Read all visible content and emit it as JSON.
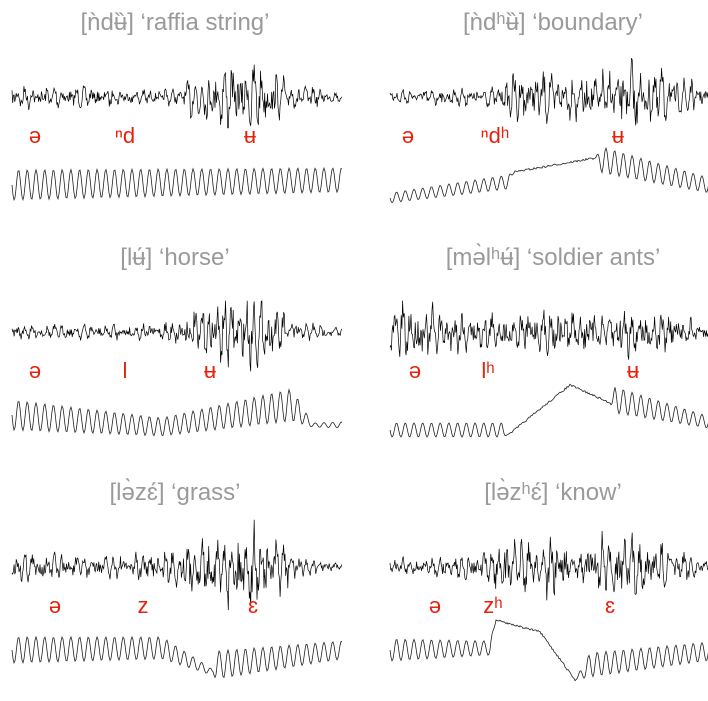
{
  "panels": [
    {
      "title": "[ǹdʉ̏] ‘raffia string’",
      "segments": [
        "ə",
        "ⁿd",
        "ʉ"
      ]
    },
    {
      "title": "[ǹdʰʉ̏] ‘boundary’",
      "segments": [
        "ə",
        "ⁿdʰ",
        "ʉ"
      ]
    },
    {
      "title": "[lʉ́] ‘horse’",
      "segments": [
        "ə",
        "l",
        "ʉ"
      ]
    },
    {
      "title": "[mə̀lʰʉ́] ‘soldier ants’",
      "segments": [
        "ə",
        "lʰ",
        "ʉ"
      ]
    },
    {
      "title": "[lə̀zɛ́] ‘grass’",
      "segments": [
        "ə",
        "z",
        "ɛ"
      ]
    },
    {
      "title": "[lə̀zʰɛ́] ‘know’",
      "segments": [
        "ə",
        "zʰ",
        "ɛ"
      ]
    }
  ]
}
